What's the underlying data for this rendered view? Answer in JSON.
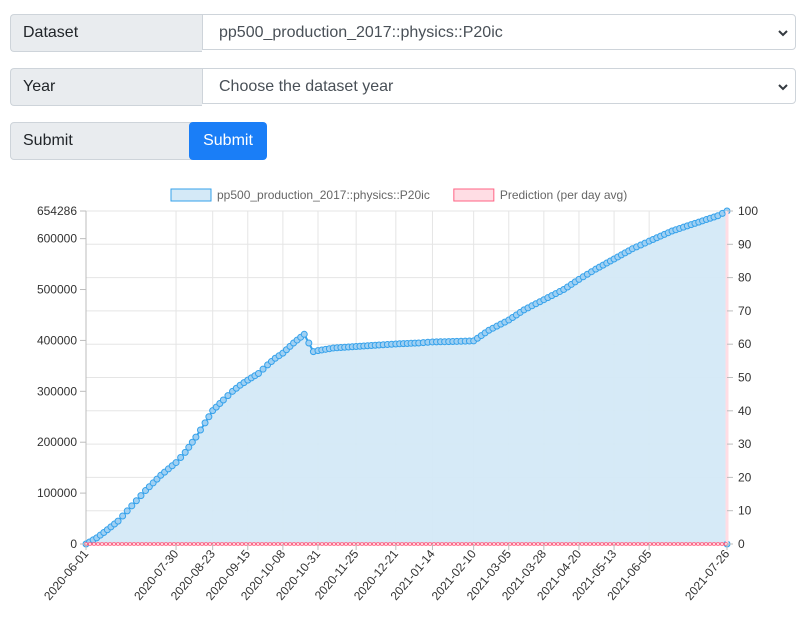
{
  "form": {
    "dataset": {
      "label": "Dataset",
      "value": "pp500_production_2017::physics::P20ic"
    },
    "year": {
      "label": "Year",
      "value": "Choose the dataset year"
    },
    "submit": {
      "label": "Submit",
      "button_label": "Submit"
    }
  },
  "chart_data": {
    "type": "line",
    "title": "",
    "xlabel": "",
    "ylabel": "",
    "legend_placement": "top",
    "grid": true,
    "x_ticks": [
      "2020-06-01",
      "2020-07-30",
      "2020-08-23",
      "2020-09-15",
      "2020-10-08",
      "2020-10-31",
      "2020-11-25",
      "2020-12-21",
      "2021-01-14",
      "2021-02-10",
      "2021-03-05",
      "2021-03-28",
      "2021-04-20",
      "2021-05-13",
      "2021-06-05",
      "2021-07-26"
    ],
    "y_ticks": [
      "0",
      "100000",
      "200000",
      "300000",
      "400000",
      "500000",
      "600000",
      "654286"
    ],
    "ylim": [
      0,
      654286
    ],
    "y2_ticks": [
      "0",
      "10",
      "20",
      "30",
      "40",
      "50",
      "60",
      "70",
      "80",
      "90",
      "100"
    ],
    "y2lim": [
      0,
      100
    ],
    "series": [
      {
        "name": "pp500_production_2017::physics::P20ic",
        "color": "#36a2eb",
        "fill": "#d4e9f7",
        "axis": "left",
        "x": [
          "2020-06-01",
          "2020-06-08",
          "2020-06-15",
          "2020-06-22",
          "2020-07-01",
          "2020-07-10",
          "2020-07-20",
          "2020-07-30",
          "2020-08-05",
          "2020-08-12",
          "2020-08-18",
          "2020-08-23",
          "2020-08-30",
          "2020-09-05",
          "2020-09-10",
          "2020-09-15",
          "2020-09-22",
          "2020-09-28",
          "2020-10-03",
          "2020-10-08",
          "2020-10-15",
          "2020-10-22",
          "2020-10-28",
          "2020-10-31",
          "2020-11-10",
          "2020-11-25",
          "2020-12-10",
          "2020-12-21",
          "2021-01-05",
          "2021-01-14",
          "2021-01-30",
          "2021-02-10",
          "2021-02-20",
          "2021-03-05",
          "2021-03-15",
          "2021-03-28",
          "2021-04-10",
          "2021-04-20",
          "2021-05-01",
          "2021-05-13",
          "2021-05-25",
          "2021-06-05",
          "2021-06-20",
          "2021-07-05",
          "2021-07-20",
          "2021-07-26"
        ],
        "values": [
          0,
          12000,
          28000,
          45000,
          75000,
          105000,
          135000,
          160000,
          180000,
          210000,
          238000,
          262000,
          283000,
          300000,
          312000,
          322000,
          335000,
          352000,
          365000,
          375000,
          395000,
          412000,
          378000,
          380000,
          385000,
          388000,
          391000,
          393000,
          395000,
          397000,
          398000,
          399000,
          420000,
          440000,
          460000,
          480000,
          500000,
          520000,
          540000,
          560000,
          580000,
          595000,
          615000,
          630000,
          645000,
          654286
        ]
      },
      {
        "name": "Prediction (per day avg)",
        "color": "#ff6384",
        "fill": "#ffdde4",
        "axis": "right",
        "x": [
          "2020-06-01",
          "2021-07-26"
        ],
        "values": [
          0,
          0
        ]
      }
    ]
  }
}
